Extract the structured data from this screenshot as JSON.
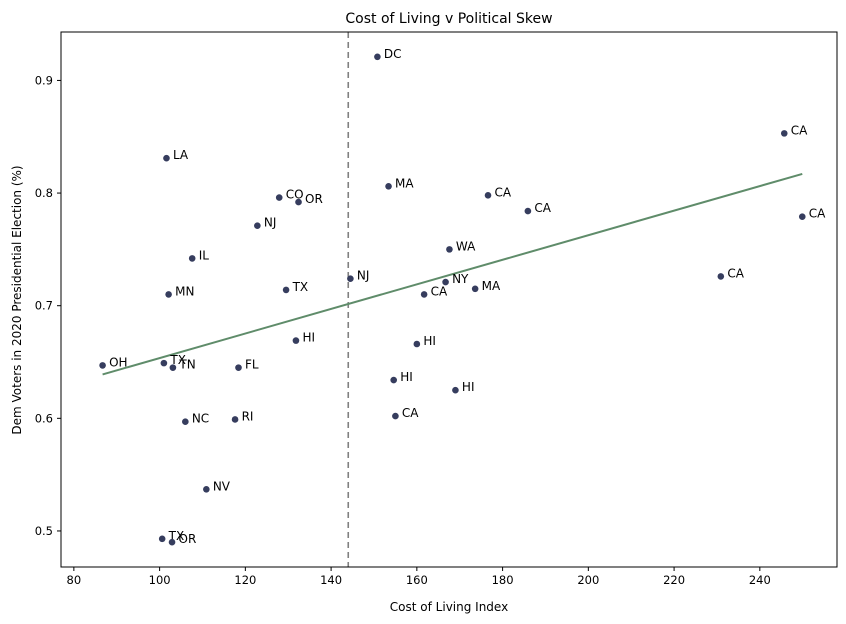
{
  "chart_data": {
    "type": "scatter",
    "title": "Cost of Living v Political Skew",
    "xlabel": "Cost of Living Index",
    "ylabel": "Dem Voters in 2020 Presidential Election (%)",
    "xlim": [
      77,
      258
    ],
    "ylim": [
      0.468,
      0.943
    ],
    "xticks": [
      80,
      100,
      120,
      140,
      160,
      180,
      200,
      220,
      240
    ],
    "yticks": [
      0.5,
      0.6,
      0.7,
      0.8,
      0.9
    ],
    "xtick_labels": [
      "80",
      "100",
      "120",
      "140",
      "160",
      "180",
      "200",
      "220",
      "240"
    ],
    "ytick_labels": [
      "0.5",
      "0.6",
      "0.7",
      "0.8",
      "0.9"
    ],
    "vline": {
      "x": 144,
      "style": "dashed",
      "color": "#808080"
    },
    "trendline": {
      "x": [
        86.7,
        249.9
      ],
      "y": [
        0.639,
        0.817
      ],
      "color": "#5f8c6a"
    },
    "point_color": "#363d5e",
    "points": [
      {
        "label": "DC",
        "x": 150.8,
        "y": 0.921
      },
      {
        "label": "CA",
        "x": 245.7,
        "y": 0.853
      },
      {
        "label": "LA",
        "x": 101.6,
        "y": 0.831
      },
      {
        "label": "MA",
        "x": 153.4,
        "y": 0.806
      },
      {
        "label": "CA",
        "x": 176.6,
        "y": 0.798
      },
      {
        "label": "CO",
        "x": 127.9,
        "y": 0.796
      },
      {
        "label": "OR",
        "x": 132.4,
        "y": 0.792
      },
      {
        "label": "CA",
        "x": 185.9,
        "y": 0.784
      },
      {
        "label": "CA",
        "x": 249.9,
        "y": 0.779
      },
      {
        "label": "NJ",
        "x": 122.8,
        "y": 0.771
      },
      {
        "label": "WA",
        "x": 167.6,
        "y": 0.75
      },
      {
        "label": "IL",
        "x": 107.6,
        "y": 0.742
      },
      {
        "label": "CA",
        "x": 230.9,
        "y": 0.726
      },
      {
        "label": "NJ",
        "x": 144.5,
        "y": 0.724
      },
      {
        "label": "NY",
        "x": 166.7,
        "y": 0.721
      },
      {
        "label": "MA",
        "x": 173.6,
        "y": 0.715
      },
      {
        "label": "TX",
        "x": 129.5,
        "y": 0.714
      },
      {
        "label": "CA",
        "x": 161.7,
        "y": 0.71
      },
      {
        "label": "MN",
        "x": 102.1,
        "y": 0.71
      },
      {
        "label": "HI",
        "x": 131.8,
        "y": 0.669
      },
      {
        "label": "HI",
        "x": 160.0,
        "y": 0.666
      },
      {
        "label": "TX",
        "x": 101.0,
        "y": 0.649
      },
      {
        "label": "OH",
        "x": 86.7,
        "y": 0.647
      },
      {
        "label": "TN",
        "x": 103.1,
        "y": 0.645
      },
      {
        "label": "FL",
        "x": 118.4,
        "y": 0.645
      },
      {
        "label": "HI",
        "x": 154.6,
        "y": 0.634
      },
      {
        "label": "HI",
        "x": 169.0,
        "y": 0.625
      },
      {
        "label": "CA",
        "x": 155.0,
        "y": 0.602
      },
      {
        "label": "RI",
        "x": 117.6,
        "y": 0.599
      },
      {
        "label": "NC",
        "x": 106.0,
        "y": 0.597
      },
      {
        "label": "NV",
        "x": 110.9,
        "y": 0.537
      },
      {
        "label": "TX",
        "x": 100.6,
        "y": 0.493
      },
      {
        "label": "OR",
        "x": 102.9,
        "y": 0.49
      }
    ]
  }
}
